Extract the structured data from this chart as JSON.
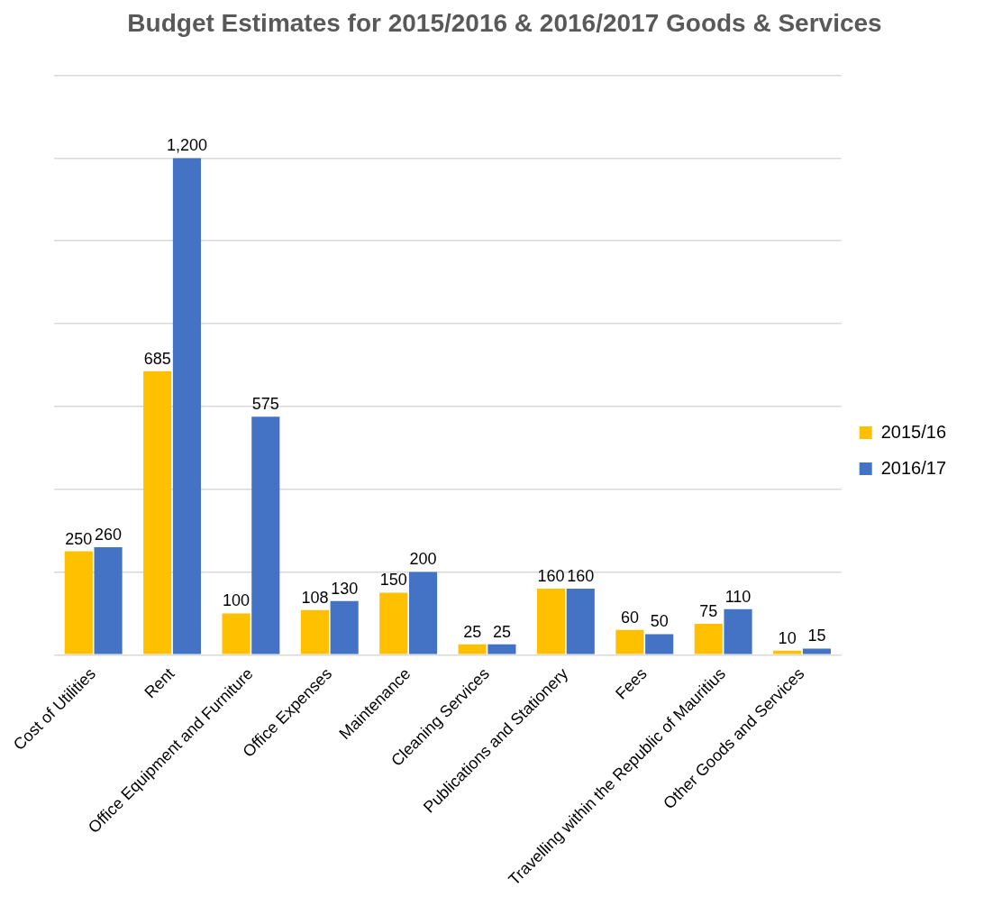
{
  "chart_data": {
    "type": "bar",
    "title": "Budget Estimates for 2015/2016 & 2016/2017 Goods & Services",
    "categories": [
      "Cost of Utilities",
      "Rent",
      "Office Equipment and Furniture",
      "Office Expenses",
      "Maintenance",
      "Cleaning Services",
      "Publications and Stationery",
      "Fees",
      "Travelling within the Republic of Mauritius",
      "Other Goods and Services"
    ],
    "series": [
      {
        "name": "2015/16",
        "color": "#ffc000",
        "values": [
          250,
          685,
          100,
          108,
          150,
          25,
          160,
          60,
          75,
          10
        ],
        "value_labels": [
          "250",
          "685",
          "100",
          "108",
          "150",
          "25",
          "160",
          "60",
          "75",
          "10"
        ]
      },
      {
        "name": "2016/17",
        "color": "#4472c4",
        "values": [
          260,
          1200,
          575,
          130,
          200,
          25,
          160,
          50,
          110,
          15
        ],
        "value_labels": [
          "260",
          "1,200",
          "575",
          "130",
          "200",
          "25",
          "160",
          "50",
          "110",
          "15"
        ]
      }
    ],
    "ylim": [
      0,
      1400
    ],
    "yticks": [
      {
        "value": 0,
        "label": null
      },
      {
        "value": 200,
        "label": null
      },
      {
        "value": 400,
        "label": null
      },
      {
        "value": 600,
        "label": null
      },
      {
        "value": 800,
        "label": null
      },
      {
        "value": 1000,
        "label": null
      },
      {
        "value": 1200,
        "label": null
      },
      {
        "value": 1400,
        "label": null
      }
    ],
    "tick_labels": "x",
    "grid": "y",
    "legend": "right"
  }
}
